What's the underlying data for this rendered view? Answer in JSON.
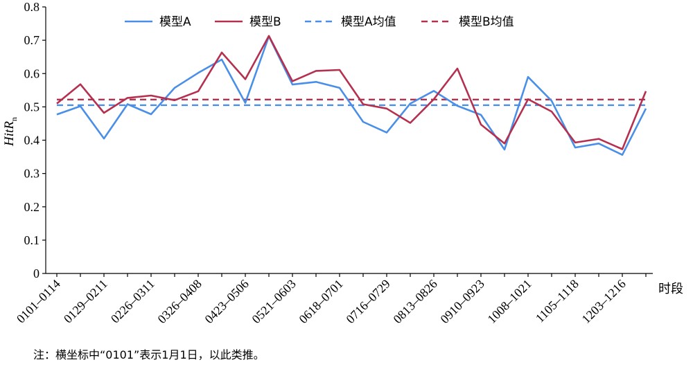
{
  "chart_data": {
    "type": "line",
    "xlabel": "时段",
    "ylabel": "HitR",
    "ylabel_sub": "n",
    "ylim": [
      0,
      0.8
    ],
    "yticks": [
      "0",
      "0.1",
      "0.2",
      "0.3",
      "0.4",
      "0.5",
      "0.6",
      "0.7",
      "0.8"
    ],
    "xtick_labels": [
      "0101–0114",
      "0129–0211",
      "0226–0311",
      "0326–0408",
      "0423–0506",
      "0521–0603",
      "0618–0701",
      "0716–0729",
      "0813–0826",
      "0910–0923",
      "1008–1021",
      "1105–1118",
      "1203–1216"
    ],
    "n_points": 26,
    "legend_placement": "top",
    "grid": false,
    "series": [
      {
        "name": "模型A",
        "color": "#4a8fe7",
        "style": "solid",
        "values": [
          0.477,
          0.502,
          0.405,
          0.508,
          0.478,
          0.557,
          0.602,
          0.642,
          0.512,
          0.712,
          0.567,
          0.575,
          0.557,
          0.455,
          0.423,
          0.51,
          0.548,
          0.503,
          0.476,
          0.372,
          0.59,
          0.518,
          0.378,
          0.39,
          0.356,
          0.495
        ]
      },
      {
        "name": "模型B",
        "color": "#b5304f",
        "style": "solid",
        "values": [
          0.51,
          0.568,
          0.482,
          0.527,
          0.534,
          0.52,
          0.547,
          0.663,
          0.583,
          0.713,
          0.577,
          0.608,
          0.611,
          0.508,
          0.495,
          0.452,
          0.523,
          0.615,
          0.447,
          0.39,
          0.523,
          0.486,
          0.393,
          0.404,
          0.373,
          0.547
        ]
      },
      {
        "name": "模型A均值",
        "color": "#4a8fe7",
        "style": "dashed",
        "constant": 0.505
      },
      {
        "name": "模型B均值",
        "color": "#b5304f",
        "style": "dashed",
        "constant": 0.522
      }
    ]
  },
  "note": "注：横坐标中“0101”表示1月1日，以此类推。"
}
